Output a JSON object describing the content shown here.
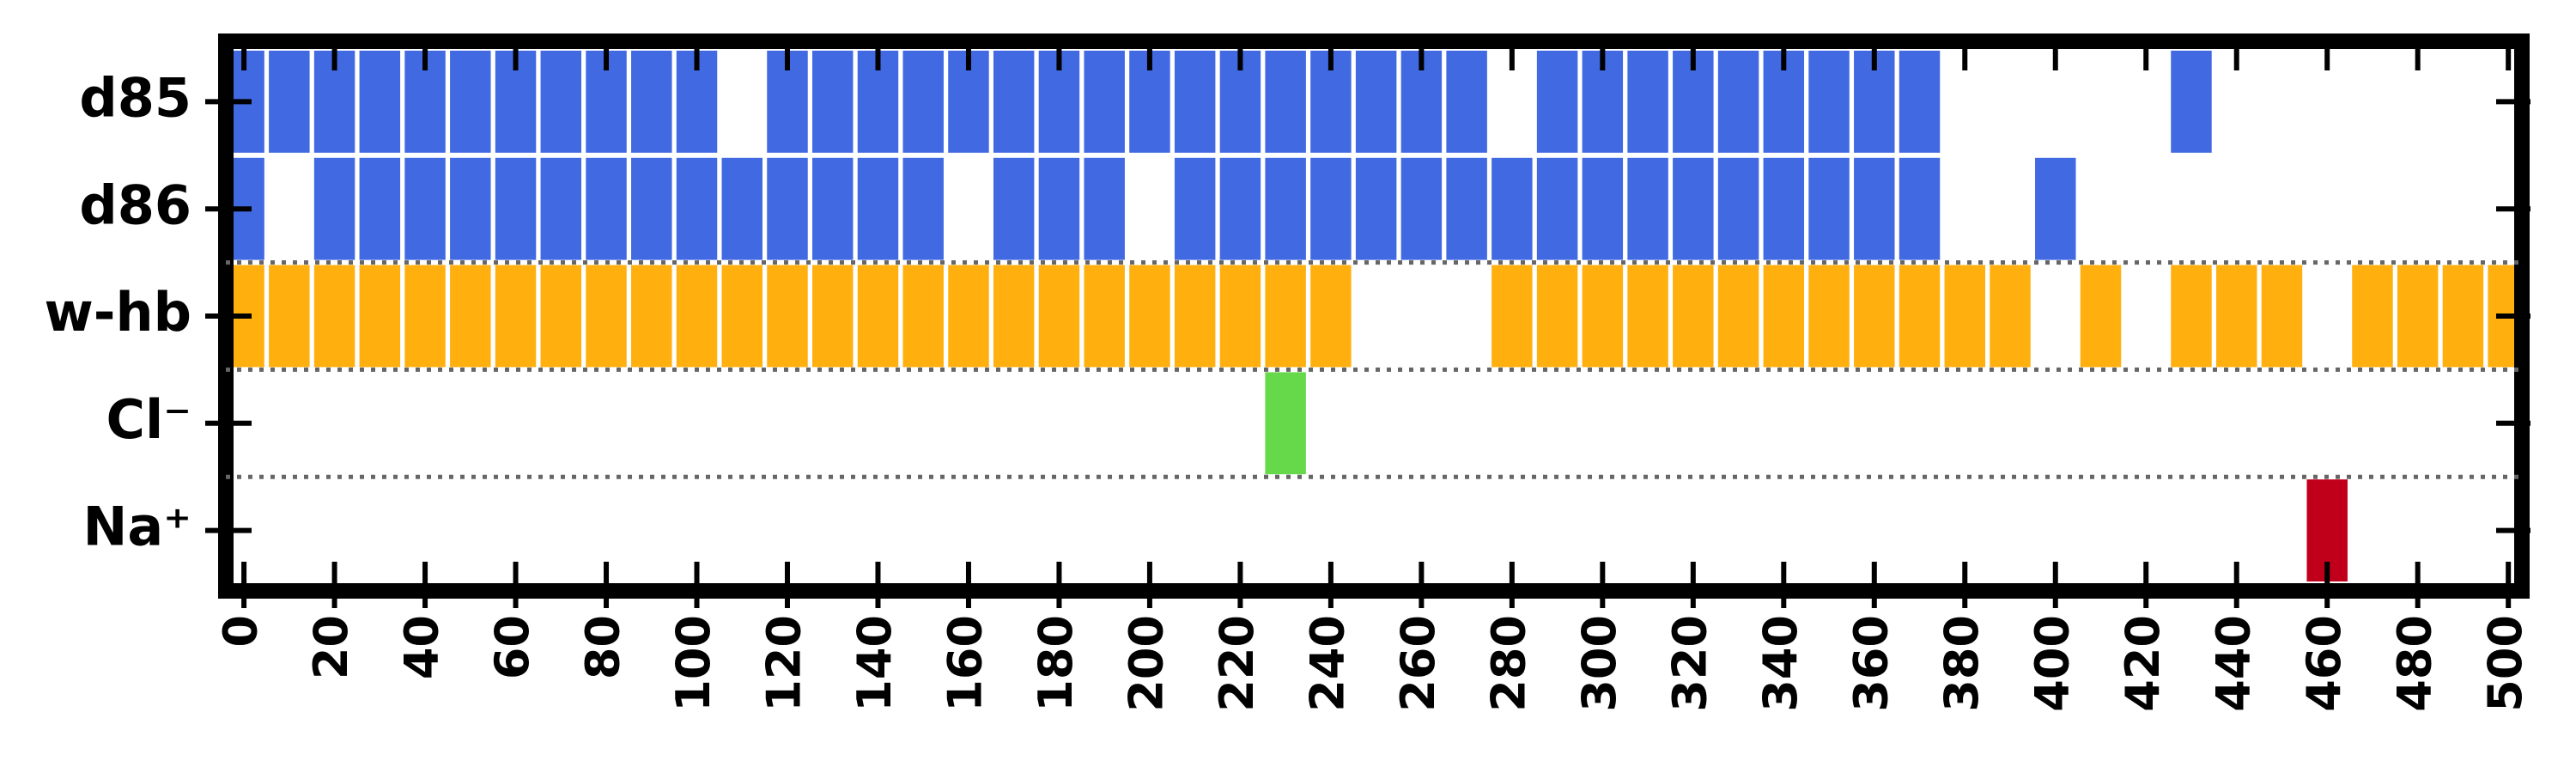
{
  "chart_data": {
    "type": "broken_bar",
    "xlim": [
      -4,
      503
    ],
    "xticks": [
      0,
      20,
      40,
      60,
      80,
      100,
      120,
      140,
      160,
      180,
      200,
      220,
      240,
      260,
      280,
      300,
      320,
      340,
      360,
      380,
      400,
      420,
      440,
      460,
      480,
      500
    ],
    "series": [
      {
        "name": "d85",
        "color": "#4169e1",
        "x": [
          0,
          10,
          20,
          30,
          40,
          50,
          60,
          70,
          80,
          90,
          100,
          120,
          130,
          140,
          150,
          160,
          170,
          180,
          190,
          200,
          210,
          220,
          230,
          240,
          250,
          260,
          270,
          290,
          300,
          310,
          320,
          330,
          340,
          350,
          360,
          370,
          430
        ]
      },
      {
        "name": "d86",
        "color": "#4169e1",
        "x": [
          0,
          20,
          30,
          40,
          50,
          60,
          70,
          80,
          90,
          100,
          110,
          120,
          130,
          140,
          150,
          170,
          180,
          190,
          210,
          220,
          230,
          240,
          250,
          260,
          270,
          280,
          290,
          300,
          310,
          320,
          330,
          340,
          350,
          360,
          370,
          400
        ]
      },
      {
        "name": "w-hb",
        "color": "#ffb00f",
        "x": [
          0,
          10,
          20,
          30,
          40,
          50,
          60,
          70,
          80,
          90,
          100,
          110,
          120,
          130,
          140,
          150,
          160,
          170,
          180,
          190,
          200,
          210,
          220,
          230,
          240,
          280,
          290,
          300,
          310,
          320,
          330,
          340,
          350,
          360,
          370,
          380,
          390,
          410,
          430,
          440,
          450,
          470,
          480,
          490,
          500
        ]
      },
      {
        "name": "Cl⁻",
        "color": "#66d94a",
        "x": [
          230
        ]
      },
      {
        "name": "Na⁺",
        "color": "#c0001a",
        "x": [
          460
        ]
      }
    ]
  }
}
